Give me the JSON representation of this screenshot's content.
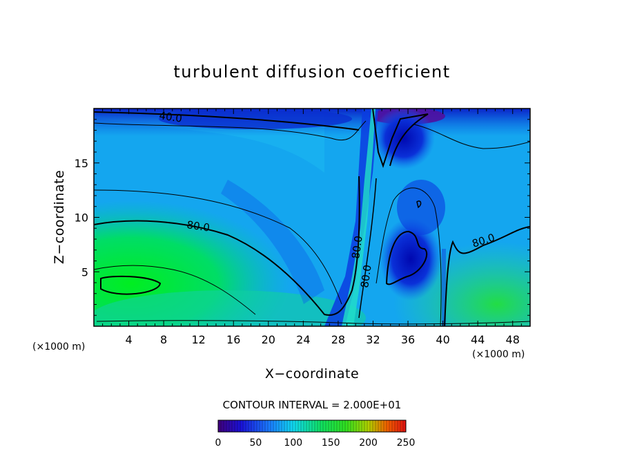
{
  "chart_data": {
    "type": "heatmap",
    "title": "turbulent diffusion coefficient",
    "xlabel": "X−coordinate",
    "ylabel": "Z−coordinate",
    "x_unit_left": "(×1000 m)",
    "x_unit_right": "(×1000 m)",
    "xlim": [
      0,
      50
    ],
    "ylim": [
      0,
      20
    ],
    "x_ticks": [
      4,
      8,
      12,
      16,
      20,
      24,
      28,
      32,
      36,
      40,
      44,
      48
    ],
    "y_ticks": [
      5,
      10,
      15
    ],
    "contour_interval_text": "CONTOUR INTERVAL = 2.000E+01",
    "colorbar": {
      "min": 0,
      "max": 250,
      "ticks": [
        0,
        50,
        100,
        150,
        200,
        250
      ],
      "colormap": "rainbow (purple → blue → cyan → green → yellow → red)"
    },
    "contour_labels": [
      {
        "text": "40.0",
        "x": 9,
        "z": 19.4,
        "angle": 8
      },
      {
        "text": "80.0",
        "x": 12,
        "z": 9.4,
        "angle": 8
      },
      {
        "text": "80.0",
        "x": 30,
        "z": 7.5,
        "angle": -82
      },
      {
        "text": "80.0",
        "x": 31,
        "z": 5.1,
        "angle": -82
      },
      {
        "text": "80.0",
        "x": 45.5,
        "z": 8.0,
        "angle": -18
      }
    ]
  }
}
